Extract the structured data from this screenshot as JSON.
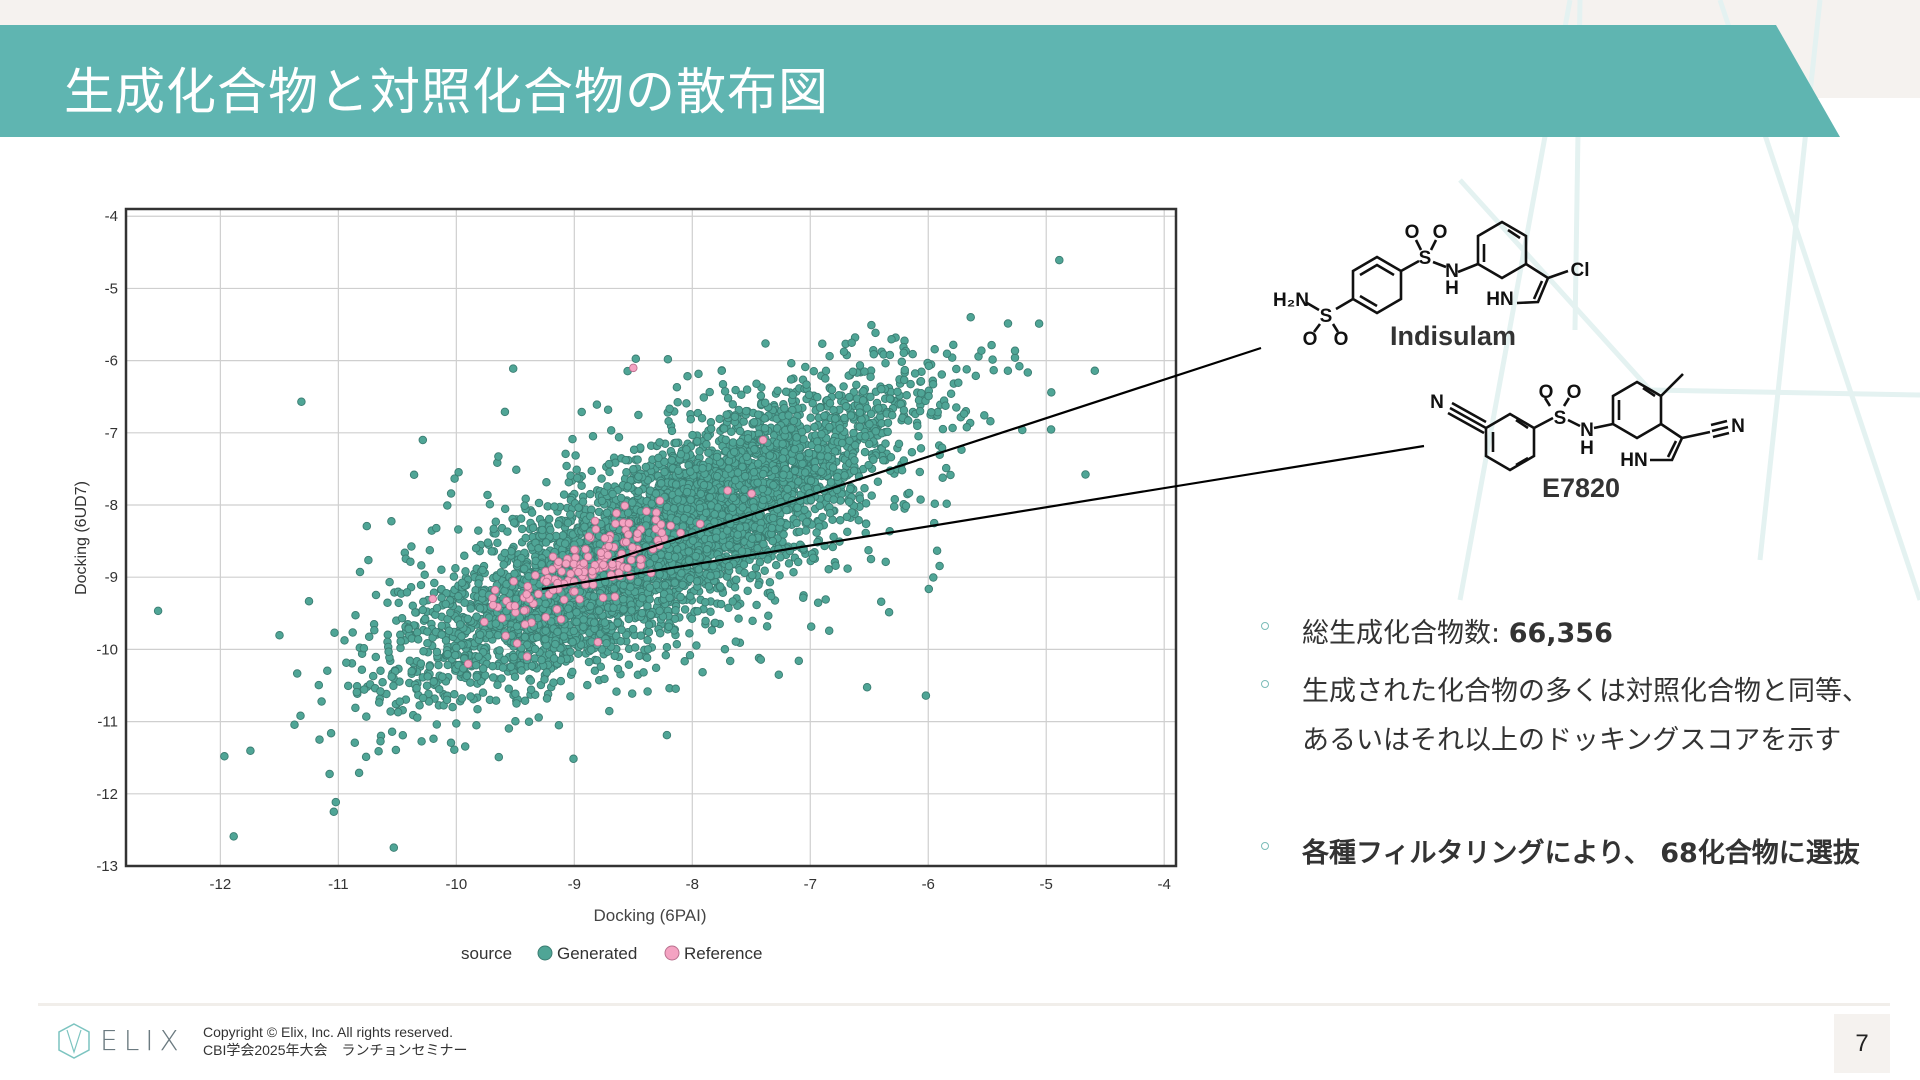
{
  "header": {
    "title": "生成化合物と対照化合物の散布図"
  },
  "colors": {
    "accent": "#5fb5b1",
    "generated": "#4fa596",
    "reference": "#f4a3c2",
    "grid": "#cfcfcf"
  },
  "chart_data": {
    "type": "scatter",
    "xlabel": "Docking (6PAI)",
    "ylabel": "Docking (6UD7)",
    "xlim": [
      -12.8,
      -3.9
    ],
    "ylim": [
      -13,
      -3.9
    ],
    "x_ticks": [
      -12,
      -11,
      -10,
      -9,
      -8,
      -7,
      -6,
      -5,
      -4
    ],
    "y_ticks": [
      -4,
      -5,
      -6,
      -7,
      -8,
      -9,
      -10,
      -11,
      -12,
      -13
    ],
    "grid": true,
    "legend": {
      "title": "source",
      "placement": "bottom",
      "entries": [
        "Generated",
        "Reference"
      ]
    },
    "series": [
      {
        "name": "Generated",
        "count": 66356,
        "distribution": {
          "mean_x": -8.3,
          "mean_y": -8.5,
          "sd_along_diagonal": 1.35,
          "sd_across_diagonal": 0.42,
          "x_range": [
            -12.6,
            -3.95
          ],
          "y_range": [
            -12.9,
            -4.15
          ]
        }
      },
      {
        "name": "Reference",
        "distribution": {
          "mean_x": -8.85,
          "mean_y": -8.85,
          "sd_along_diagonal": 0.55,
          "sd_across_diagonal": 0.18
        },
        "sample_points": [
          [
            -7.4,
            -7.1
          ],
          [
            -7.7,
            -7.8
          ],
          [
            -8.5,
            -6.1
          ],
          [
            -10.2,
            -9.3
          ],
          [
            -9.9,
            -10.2
          ],
          [
            -8.8,
            -9.9
          ],
          [
            -9.4,
            -10.1
          ]
        ]
      }
    ]
  },
  "molecules": {
    "indisulam": {
      "name": "Indisulam",
      "atoms": {
        "h2n": "H₂N",
        "s1": "S",
        "o1": "O",
        "o2": "O",
        "s2": "S",
        "o3": "O",
        "o4": "O",
        "n": "N",
        "h": "H",
        "hn": "HN",
        "cl": "Cl"
      }
    },
    "e7820": {
      "name": "E7820",
      "atoms": {
        "n1": "N",
        "s": "S",
        "o1": "O",
        "o2": "O",
        "n": "N",
        "h": "H",
        "hn": "HN",
        "n2": "N"
      }
    }
  },
  "bullets": [
    {
      "text": "総生成化合物数: ",
      "bold": "66,356"
    },
    {
      "text": "生成された化合物の多くは対照化合物と同等、",
      "text2": "あるいはそれ以上のドッキングスコアを示す"
    },
    {
      "bold": "各種フィルタリングにより、 68化合物に選抜"
    }
  ],
  "footer": {
    "logo": "ELIX",
    "copyright": "Copyright © Elix, Inc. All rights reserved.",
    "event": "CBI学会2025年大会　ランチョンセミナー",
    "page": "7"
  }
}
